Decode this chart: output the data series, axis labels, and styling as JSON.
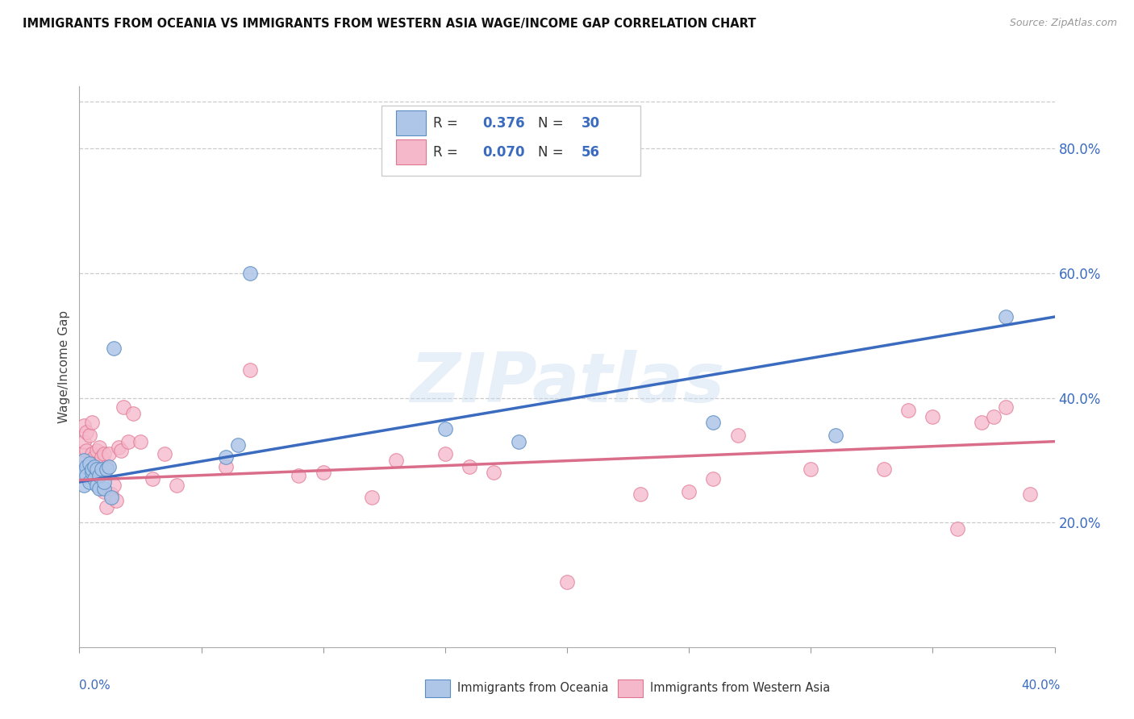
{
  "title": "IMMIGRANTS FROM OCEANIA VS IMMIGRANTS FROM WESTERN ASIA WAGE/INCOME GAP CORRELATION CHART",
  "source": "Source: ZipAtlas.com",
  "ylabel": "Wage/Income Gap",
  "right_yticklabels": [
    "20.0%",
    "40.0%",
    "60.0%",
    "80.0%"
  ],
  "right_yticks": [
    0.2,
    0.4,
    0.6,
    0.8
  ],
  "watermark": "ZIPatlas",
  "color_oceania_fill": "#aec6e8",
  "color_oceania_edge": "#5b8ec4",
  "color_western_fill": "#f5b8cb",
  "color_western_edge": "#e0758f",
  "color_line_oceania": "#3a6bbf",
  "color_line_western": "#d96d8a",
  "xlim": [
    0.0,
    0.4
  ],
  "ylim": [
    0.0,
    0.9
  ],
  "oceania_x": [
    0.001,
    0.002,
    0.002,
    0.003,
    0.003,
    0.004,
    0.004,
    0.005,
    0.005,
    0.006,
    0.006,
    0.007,
    0.007,
    0.008,
    0.008,
    0.009,
    0.01,
    0.01,
    0.011,
    0.012,
    0.013,
    0.014,
    0.06,
    0.065,
    0.07,
    0.15,
    0.18,
    0.26,
    0.31,
    0.38
  ],
  "oceania_y": [
    0.28,
    0.3,
    0.26,
    0.29,
    0.275,
    0.295,
    0.265,
    0.28,
    0.285,
    0.29,
    0.27,
    0.285,
    0.26,
    0.255,
    0.275,
    0.285,
    0.255,
    0.265,
    0.285,
    0.29,
    0.24,
    0.48,
    0.305,
    0.325,
    0.6,
    0.35,
    0.33,
    0.36,
    0.34,
    0.53
  ],
  "western_x": [
    0.001,
    0.002,
    0.002,
    0.003,
    0.003,
    0.004,
    0.004,
    0.005,
    0.005,
    0.006,
    0.006,
    0.007,
    0.007,
    0.008,
    0.008,
    0.009,
    0.01,
    0.01,
    0.011,
    0.011,
    0.012,
    0.013,
    0.014,
    0.015,
    0.016,
    0.017,
    0.018,
    0.02,
    0.022,
    0.025,
    0.03,
    0.035,
    0.04,
    0.06,
    0.07,
    0.09,
    0.1,
    0.12,
    0.13,
    0.15,
    0.16,
    0.17,
    0.2,
    0.23,
    0.25,
    0.26,
    0.27,
    0.3,
    0.33,
    0.34,
    0.35,
    0.36,
    0.37,
    0.375,
    0.38,
    0.39
  ],
  "western_y": [
    0.31,
    0.33,
    0.355,
    0.315,
    0.345,
    0.29,
    0.34,
    0.31,
    0.36,
    0.28,
    0.305,
    0.295,
    0.315,
    0.32,
    0.29,
    0.305,
    0.25,
    0.31,
    0.29,
    0.225,
    0.31,
    0.245,
    0.26,
    0.235,
    0.32,
    0.315,
    0.385,
    0.33,
    0.375,
    0.33,
    0.27,
    0.31,
    0.26,
    0.29,
    0.445,
    0.275,
    0.28,
    0.24,
    0.3,
    0.31,
    0.29,
    0.28,
    0.105,
    0.245,
    0.25,
    0.27,
    0.34,
    0.285,
    0.285,
    0.38,
    0.37,
    0.19,
    0.36,
    0.37,
    0.385,
    0.245
  ],
  "trend_oceania_x0": 0.0,
  "trend_oceania_x1": 0.4,
  "trend_oceania_y0": 0.265,
  "trend_oceania_y1": 0.53,
  "trend_western_x0": 0.0,
  "trend_western_x1": 0.4,
  "trend_western_y0": 0.268,
  "trend_western_y1": 0.33
}
